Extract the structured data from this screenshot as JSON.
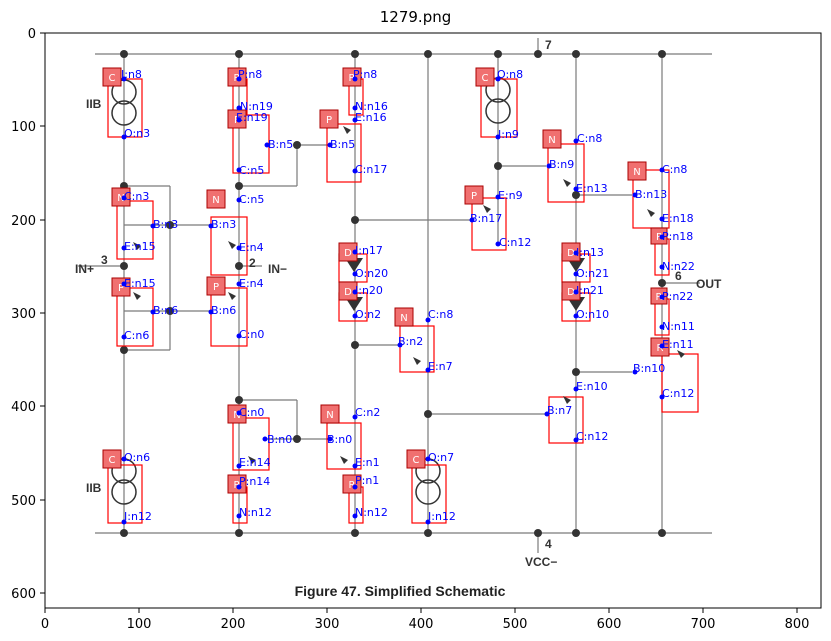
{
  "plot_title": "1279.png",
  "axis": {
    "x_ticks": [
      "0",
      "100",
      "200",
      "300",
      "400",
      "500",
      "600",
      "700",
      "800"
    ],
    "y_ticks": [
      "0",
      "100",
      "200",
      "300",
      "400",
      "500",
      "600"
    ]
  },
  "caption": "Figure 47.  Simplified Schematic",
  "pins": {
    "p7": "7",
    "p3": "3",
    "p2": "2",
    "p4": "4",
    "p6": "6",
    "in_plus": "IN+",
    "in_minus": "IN−",
    "out": "OUT",
    "iib_top": "IIB",
    "iib_bottom": "IIB",
    "vcc": "VCC−"
  },
  "badges": {
    "c1": "C",
    "r1": "R",
    "r2": "R",
    "p1": "P",
    "c2": "C",
    "n1": "N",
    "n2": "N",
    "n3": "N",
    "p2": "P",
    "p3": "P",
    "p4": "P",
    "d1": "D",
    "d2": "D",
    "n4": "N",
    "n5": "N",
    "n6": "N",
    "d3": "D",
    "d4": "D",
    "r3": "R",
    "r4": "R",
    "p5": "P",
    "n7": "N",
    "p6": "P",
    "c3": "C",
    "r5": "R",
    "r6": "R",
    "c4": "C"
  },
  "labels": {
    "l1": "I:n8",
    "l2": "O:n3",
    "l3": "P:n8",
    "l4": "N:n19",
    "l5": "E:n19",
    "l6": "B:n5",
    "l7": "C:n5",
    "l8": "P:n8",
    "l9": "N:n16",
    "l10": "E:n16",
    "l11": "B:n5",
    "l12": "C:n17",
    "l13": "O:n8",
    "l14": "I:n9",
    "l15": "C:n8",
    "l16": "B:n9",
    "l17": "E:n13",
    "l18": "C:n8",
    "l19": "B:n13",
    "l20": "E:n18",
    "l21": "C:n3",
    "l22": "B:n3",
    "l23": "E:n15",
    "l24": "C:n5",
    "l25": "B:n3",
    "l26": "E:n4",
    "l27": "E:n9",
    "l28": "B:n17",
    "l29": "C:n12",
    "l30": "P:n18",
    "l31": "N:n22",
    "l32": "I:n17",
    "l33": "O:n20",
    "l34": "I:n13",
    "l35": "O:n21",
    "l36": "E:n15",
    "l37": "B:n6",
    "l38": "C:n6",
    "l39": "E:n4",
    "l40": "B:n6",
    "l41": "C:n0",
    "l42": "I:n20",
    "l43": "O:n2",
    "l44": "I:n21",
    "l45": "O:n10",
    "l46": "P:n22",
    "l47": "N:n11",
    "l48": "C:n8",
    "l49": "B:n2",
    "l50": "E:n7",
    "l51": "E:n11",
    "l52": "B:n10",
    "l53": "C:n12",
    "l54": "E:n10",
    "l55": "B:n7",
    "l56": "C:n12",
    "l57": "C:n0",
    "l58": "B:n0",
    "l59": "E:n14",
    "l60": "C:n2",
    "l61": "B:n0",
    "l62": "E:n1",
    "l63": "O:n6",
    "l64": "I:n12",
    "l65": "P:n14",
    "l66": "N:n12",
    "l67": "P:n1",
    "l68": "N:n12",
    "l69": "O:n7",
    "l70": "I:n12"
  },
  "colors": {
    "label": "#0000ff",
    "box": "#ff0000",
    "badge_fill": "#f07070",
    "wire": "#7a7a7a"
  }
}
